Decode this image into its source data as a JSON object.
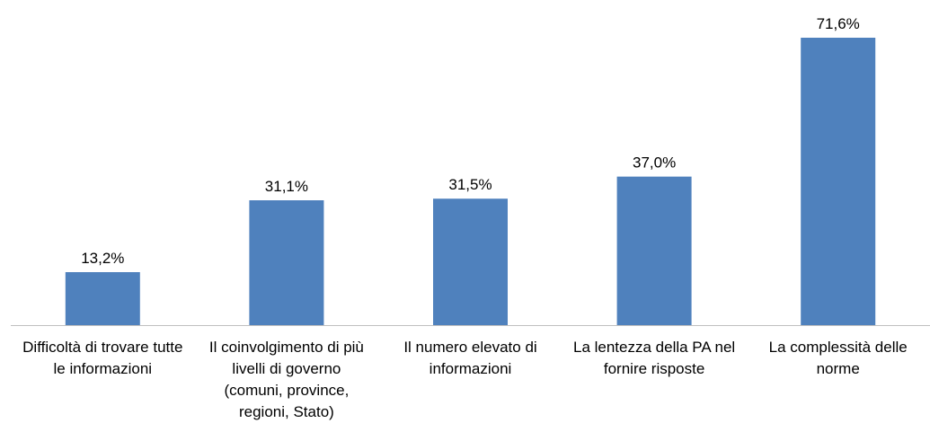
{
  "chart_data": {
    "type": "bar",
    "categories": [
      "Difficoltà di trovare tutte le informazioni",
      "Il coinvolgimento di più livelli di governo (comuni, province, regioni, Stato)",
      "Il numero elevato di informazioni",
      "La lentezza della PA nel fornire risposte",
      "La complessità delle norme"
    ],
    "values": [
      13.2,
      31.1,
      31.5,
      37.0,
      71.6
    ],
    "value_labels": [
      "13,2%",
      "31,1%",
      "31,5%",
      "37,0%",
      "71,6%"
    ],
    "color": "#4f81bd"
  }
}
